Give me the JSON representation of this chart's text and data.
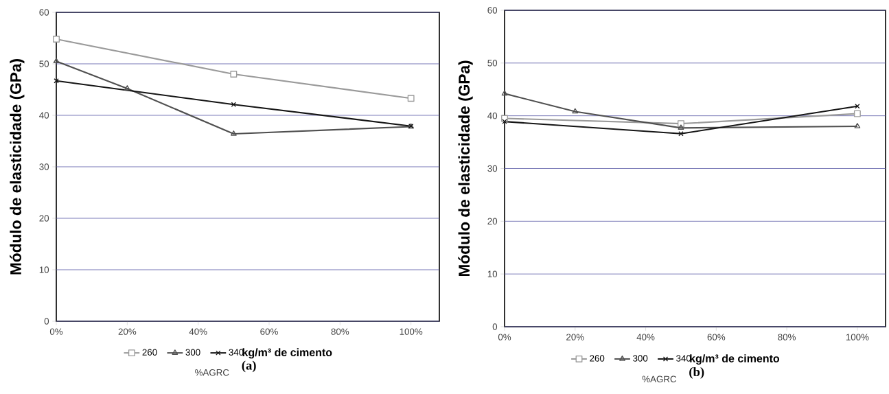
{
  "chart_data": [
    {
      "type": "line",
      "title": "(a)",
      "xlabel": "%AGRC",
      "ylabel": "Módulo de elasticidade (GPa)",
      "legend_title": "kg/m³ de cimento",
      "series": [
        {
          "name": "260",
          "color": "#9a9a9a",
          "marker": "square",
          "x": [
            0,
            50,
            100
          ],
          "values": [
            54.8,
            48,
            43.3
          ]
        },
        {
          "name": "300",
          "color": "#505050",
          "marker": "triangle",
          "x": [
            0,
            20,
            50,
            100
          ],
          "values": [
            50.5,
            45.2,
            36.4,
            37.8
          ]
        },
        {
          "name": "340",
          "color": "#151515",
          "marker": "cross",
          "x": [
            0,
            50,
            100
          ],
          "values": [
            46.7,
            42.1,
            37.9
          ]
        }
      ],
      "xlim": [
        0,
        108
      ],
      "ylim": [
        0,
        60
      ],
      "xticks": [
        {
          "value": 0,
          "label": "0%"
        },
        {
          "value": 20,
          "label": "20%"
        },
        {
          "value": 40,
          "label": "40%"
        },
        {
          "value": 60,
          "label": "60%"
        },
        {
          "value": 80,
          "label": "80%"
        },
        {
          "value": 100,
          "label": "100%"
        }
      ],
      "yticks": [
        0,
        10,
        20,
        30,
        40,
        50,
        60
      ],
      "grid": "y",
      "legend": "bottom"
    },
    {
      "type": "line",
      "title": "(b)",
      "xlabel": "%AGRC",
      "ylabel": "Módulo de elasticidade (GPa)",
      "legend_title": "kg/m³ de cimento",
      "series": [
        {
          "name": "260",
          "color": "#9a9a9a",
          "marker": "square",
          "x": [
            0,
            50,
            100
          ],
          "values": [
            39.5,
            38.5,
            40.4
          ]
        },
        {
          "name": "300",
          "color": "#505050",
          "marker": "triangle",
          "x": [
            0,
            20,
            50,
            100
          ],
          "values": [
            44.2,
            40.8,
            37.7,
            38.0
          ]
        },
        {
          "name": "340",
          "color": "#151515",
          "marker": "cross",
          "x": [
            0,
            50,
            100
          ],
          "values": [
            38.9,
            36.6,
            41.8
          ]
        }
      ],
      "xlim": [
        0,
        108
      ],
      "ylim": [
        0,
        60
      ],
      "xticks": [
        {
          "value": 0,
          "label": "0%"
        },
        {
          "value": 20,
          "label": "20%"
        },
        {
          "value": 40,
          "label": "40%"
        },
        {
          "value": 60,
          "label": "60%"
        },
        {
          "value": 80,
          "label": "80%"
        },
        {
          "value": 100,
          "label": "100%"
        }
      ],
      "yticks": [
        0,
        10,
        20,
        30,
        40,
        50,
        60
      ],
      "grid": "y",
      "legend": "bottom"
    }
  ]
}
